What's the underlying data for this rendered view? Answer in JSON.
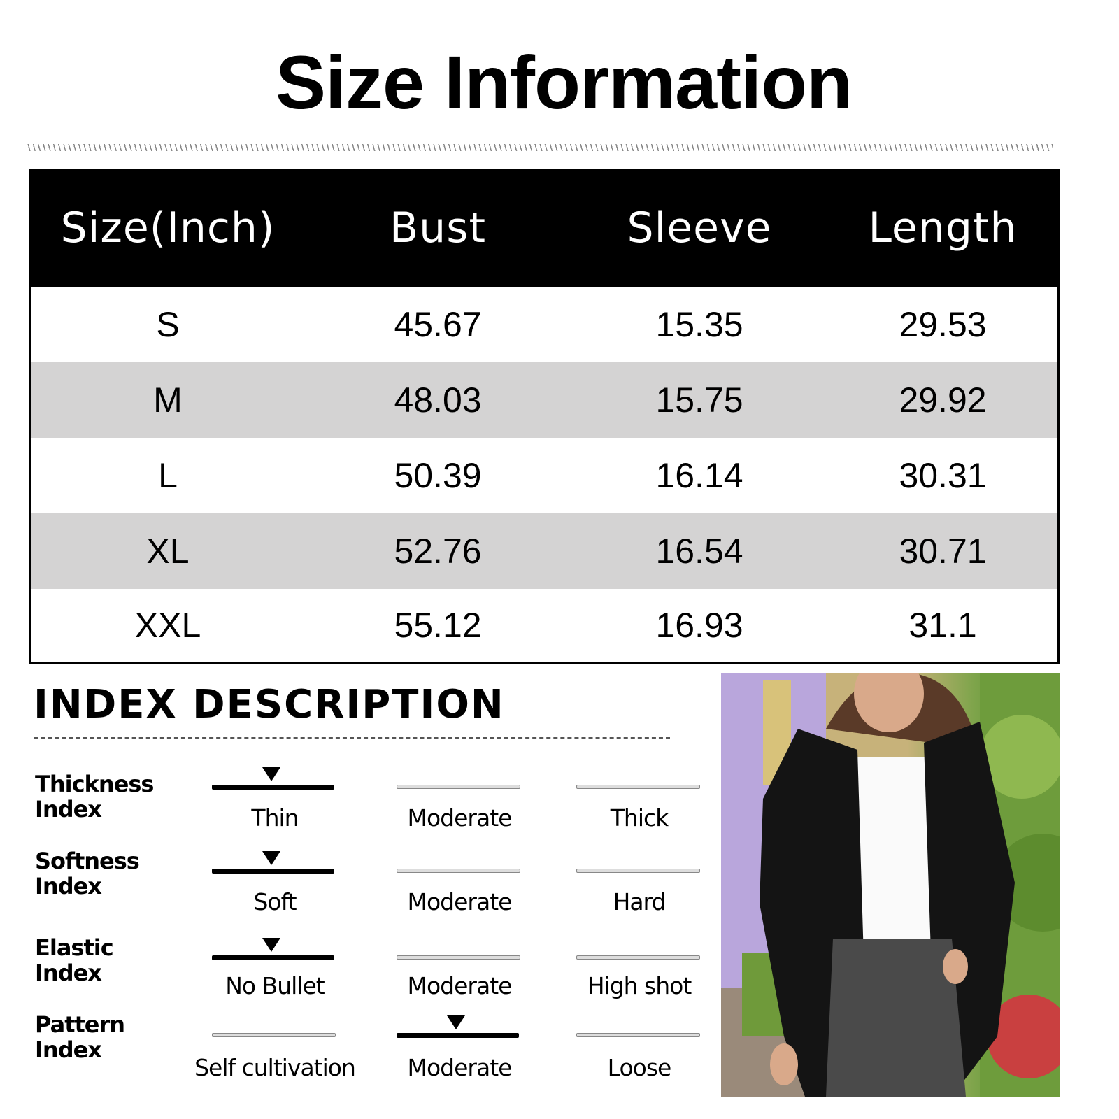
{
  "title": "Size Information",
  "table": {
    "headers": [
      "Size(Inch)",
      "Bust",
      "Sleeve",
      "Length"
    ],
    "rows": [
      [
        "S",
        "45.67",
        "15.35",
        "29.53"
      ],
      [
        "M",
        "48.03",
        "15.75",
        "29.92"
      ],
      [
        "L",
        "50.39",
        "16.14",
        "30.31"
      ],
      [
        "XL",
        "52.76",
        "16.54",
        "30.71"
      ],
      [
        "XXL",
        "55.12",
        "16.93",
        "31.1"
      ]
    ],
    "stripe_color": "#d4d3d3"
  },
  "index": {
    "title": "INDEX DESCRIPTION",
    "items": [
      {
        "label1": "Thickness",
        "label2": "Index",
        "options": [
          "Thin",
          "Moderate",
          "Thick"
        ],
        "selected": 0
      },
      {
        "label1": "Softness",
        "label2": "Index",
        "options": [
          "Soft",
          "Moderate",
          "Hard"
        ],
        "selected": 0
      },
      {
        "label1": "Elastic",
        "label2": "Index",
        "options": [
          "No Bullet",
          "Moderate",
          "High shot"
        ],
        "selected": 0
      },
      {
        "label1": "Pattern",
        "label2": "Index",
        "options": [
          "Self cultivation",
          "Moderate",
          "Loose"
        ],
        "selected": 1
      }
    ]
  },
  "photo": {
    "subject": "model-in-black-cardigan"
  }
}
